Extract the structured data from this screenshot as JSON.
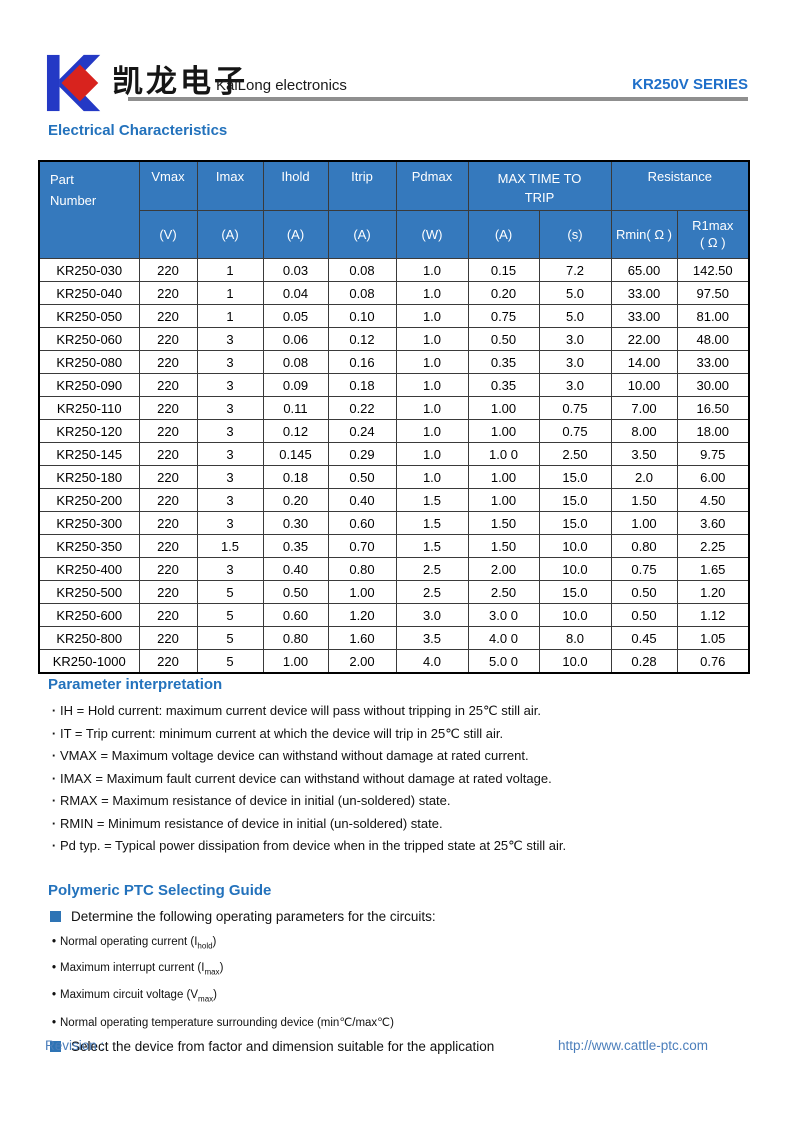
{
  "colors": {
    "accent_blue": "#2372bc",
    "table_header_bg": "#3579bd",
    "footer_blue": "#4b7ebb",
    "bullet_square_blue": "#2e74b5",
    "logo_blue": "#2439c5",
    "logo_red": "#d8231e",
    "rule_gray": "#8f8f8f"
  },
  "header": {
    "logo_cn": "凯龙电子",
    "logo_en": "KaiLong electronics",
    "series": "KR250V SERIES"
  },
  "electrical": {
    "title": "Electrical Characteristics",
    "table": {
      "head": {
        "part_l1": "Part",
        "part_l2": "Number",
        "vmax": "Vmax",
        "imax": "Imax",
        "ihold": "Ihold",
        "itrip": "Itrip",
        "pdmax": "Pdmax",
        "max_time_l1": "MAX TIME TO",
        "max_time_l2": "TRIP",
        "resistance": "Resistance",
        "u_v": "(V)",
        "u_a1": "(A)",
        "u_a2": "(A)",
        "u_a3": "(A)",
        "u_w": "(W)",
        "u_a4": "(A)",
        "u_s": "(s)",
        "rmin": "Rmin( Ω )",
        "r1max_l1": "R1max",
        "r1max_l2": "( Ω )"
      },
      "rows": [
        [
          "KR250-030",
          "220",
          "1",
          "0.03",
          "0.08",
          "1.0",
          "0.15",
          "7.2",
          "65.00",
          "142.50"
        ],
        [
          "KR250-040",
          "220",
          "1",
          "0.04",
          "0.08",
          "1.0",
          "0.20",
          "5.0",
          "33.00",
          "97.50"
        ],
        [
          "KR250-050",
          "220",
          "1",
          "0.05",
          "0.10",
          "1.0",
          "0.75",
          "5.0",
          "33.00",
          "81.00"
        ],
        [
          "KR250-060",
          "220",
          "3",
          "0.06",
          "0.12",
          "1.0",
          "0.50",
          "3.0",
          "22.00",
          "48.00"
        ],
        [
          "KR250-080",
          "220",
          "3",
          "0.08",
          "0.16",
          "1.0",
          "0.35",
          "3.0",
          "14.00",
          "33.00"
        ],
        [
          "KR250-090",
          "220",
          "3",
          "0.09",
          "0.18",
          "1.0",
          "0.35",
          "3.0",
          "10.00",
          "30.00"
        ],
        [
          "KR250-110",
          "220",
          "3",
          "0.11",
          "0.22",
          "1.0",
          "1.00",
          "0.75",
          "7.00",
          "16.50"
        ],
        [
          "KR250-120",
          "220",
          "3",
          "0.12",
          "0.24",
          "1.0",
          "1.00",
          "0.75",
          "8.00",
          "18.00"
        ],
        [
          "KR250-145",
          "220",
          "3",
          "0.145",
          "0.29",
          "1.0",
          "1.0 0",
          "2.50",
          "3.50",
          "9.75"
        ],
        [
          "KR250-180",
          "220",
          "3",
          "0.18",
          "0.50",
          "1.0",
          "1.00",
          "15.0",
          "2.0",
          "6.00"
        ],
        [
          "KR250-200",
          "220",
          "3",
          "0.20",
          "0.40",
          "1.5",
          "1.00",
          "15.0",
          "1.50",
          "4.50"
        ],
        [
          "KR250-300",
          "220",
          "3",
          "0.30",
          "0.60",
          "1.5",
          "1.50",
          "15.0",
          "1.00",
          "3.60"
        ],
        [
          "KR250-350",
          "220",
          "1.5",
          "0.35",
          "0.70",
          "1.5",
          "1.50",
          "10.0",
          "0.80",
          "2.25"
        ],
        [
          "KR250-400",
          "220",
          "3",
          "0.40",
          "0.80",
          "2.5",
          "2.00",
          "10.0",
          "0.75",
          "1.65"
        ],
        [
          "KR250-500",
          "220",
          "5",
          "0.50",
          "1.00",
          "2.5",
          "2.50",
          "15.0",
          "0.50",
          "1.20"
        ],
        [
          "KR250-600",
          "220",
          "5",
          "0.60",
          "1.20",
          "3.0",
          "3.0 0",
          "10.0",
          "0.50",
          "1.12"
        ],
        [
          "KR250-800",
          "220",
          "5",
          "0.80",
          "1.60",
          "3.5",
          "4.0 0",
          "8.0",
          "0.45",
          "1.05"
        ],
        [
          "KR250-1000",
          "220",
          "5",
          "1.00",
          "2.00",
          "4.0",
          "5.0 0",
          "10.0",
          "0.28",
          "0.76"
        ]
      ]
    }
  },
  "parameters": {
    "title": "Parameter interpretation",
    "bullets": [
      "IH = Hold current: maximum current device will pass without tripping in 25℃  still air.",
      "IT = Trip current: minimum current at which the device will trip in 25℃  still air.",
      "VMAX = Maximum voltage device can withstand without damage at rated current.",
      "IMAX = Maximum fault current device can withstand without damage at rated voltage.",
      "RMAX = Maximum resistance of device in initial (un-soldered) state.",
      "RMIN = Minimum resistance of device in initial (un-soldered) state.",
      "Pd typ. = Typical power dissipation from device when in the tripped state at 25℃  still air."
    ]
  },
  "guide": {
    "title": "Polymeric PTC Selecting Guide",
    "step1": "Determine the following operating parameters for the circuits:",
    "bullets": [
      {
        "pre": "Normal operating current (I",
        "sub": "hold",
        "post": ")"
      },
      {
        "pre": "Maximum interrupt current (I",
        "sub": "max",
        "post": ")"
      },
      {
        "pre": "Maximum circuit voltage (V",
        "sub": "max",
        "post": ")"
      },
      {
        "pre": "Normal operating temperature surrounding device (min℃/max℃)",
        "sub": "",
        "post": ""
      }
    ],
    "step2": "Select the device from factor and dimension suitable for the application"
  },
  "footer": {
    "revision": "Revision :",
    "url": "http://www.cattle-ptc.com"
  }
}
